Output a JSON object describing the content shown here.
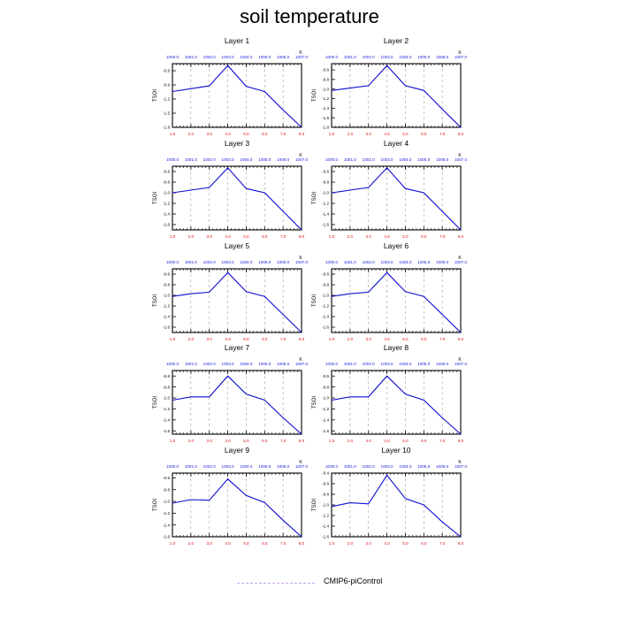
{
  "title": "soil temperature",
  "legend": {
    "label": "CMIP6-piControl",
    "color": "#c9a6ee"
  },
  "colors": {
    "line": "#0b0bd0",
    "bottom_ticks": "#e01010",
    "top_ticks": "#2020e0",
    "axis": "#000000",
    "grid": "#a0a0a0"
  },
  "chart_data": [
    {
      "type": "line",
      "title": "Layer 1",
      "ylabel": "TSOI",
      "top_unit": "K",
      "x": [
        1,
        2,
        3,
        4,
        5,
        6,
        7,
        8
      ],
      "x_ticks": [
        "1.0",
        "2.0",
        "3.0",
        "4.0",
        "5.0",
        "6.0",
        "7.0",
        "8.0"
      ],
      "top_ticks": [
        "1000.0",
        "1001.0",
        "1002.0",
        "1003.0",
        "1004.0",
        "1005.0",
        "1006.0",
        "1007.0"
      ],
      "y_ticks": [
        "-0.6",
        "-0.9",
        "-1.2",
        "-1.5",
        "-1.8"
      ],
      "yticks_values": [
        -0.6,
        -0.9,
        -1.2,
        -1.5,
        -1.8
      ],
      "ylim": [
        -1.8,
        -0.45
      ],
      "series": [
        {
          "name": "CMIP6-piControl",
          "values": [
            -1.04,
            -0.98,
            -0.92,
            -0.49,
            -0.93,
            -1.04,
            -1.43,
            -1.8
          ]
        }
      ]
    },
    {
      "type": "line",
      "title": "Layer 2",
      "ylabel": "TSOI",
      "top_unit": "K",
      "x": [
        1,
        2,
        3,
        4,
        5,
        6,
        7,
        8
      ],
      "x_ticks": [
        "1.0",
        "2.0",
        "3.0",
        "4.0",
        "5.0",
        "6.0",
        "7.0",
        "8.0"
      ],
      "top_ticks": [
        "1000.0",
        "1001.0",
        "1002.0",
        "1003.0",
        "1004.0",
        "1005.0",
        "1006.0",
        "1007.0"
      ],
      "y_ticks": [
        "-0.6",
        "-0.8",
        "-1.0",
        "-1.2",
        "-1.4",
        "-1.6",
        "-1.8"
      ],
      "yticks_values": [
        -0.6,
        -0.8,
        -1.0,
        -1.2,
        -1.4,
        -1.6,
        -1.8
      ],
      "ylim": [
        -1.8,
        -0.47
      ],
      "series": [
        {
          "name": "CMIP6-piControl",
          "values": [
            -1.03,
            -0.98,
            -0.93,
            -0.51,
            -0.93,
            -1.03,
            -1.42,
            -1.8
          ]
        }
      ]
    },
    {
      "type": "line",
      "title": "Layer 3",
      "ylabel": "TSOI",
      "top_unit": "K",
      "x": [
        1,
        2,
        3,
        4,
        5,
        6,
        7,
        8
      ],
      "x_ticks": [
        "1.0",
        "2.0",
        "3.0",
        "4.0",
        "5.0",
        "6.0",
        "7.0",
        "8.0"
      ],
      "top_ticks": [
        "1000.0",
        "1001.0",
        "1002.0",
        "1003.0",
        "1004.0",
        "1005.0",
        "1006.0",
        "1007.0"
      ],
      "y_ticks": [
        "-0.6",
        "-0.8",
        "-1.0",
        "-1.2",
        "-1.4",
        "-1.6"
      ],
      "yticks_values": [
        -0.6,
        -0.8,
        -1.0,
        -1.2,
        -1.4,
        -1.6
      ],
      "ylim": [
        -1.7,
        -0.5
      ],
      "series": [
        {
          "name": "CMIP6-piControl",
          "values": [
            -1.0,
            -0.95,
            -0.9,
            -0.53,
            -0.92,
            -1.0,
            -1.35,
            -1.7
          ]
        }
      ]
    },
    {
      "type": "line",
      "title": "Layer 4",
      "ylabel": "TSOI",
      "top_unit": "K",
      "x": [
        1,
        2,
        3,
        4,
        5,
        6,
        7,
        8
      ],
      "x_ticks": [
        "1.0",
        "2.0",
        "3.0",
        "4.0",
        "5.0",
        "6.0",
        "7.0",
        "8.0"
      ],
      "top_ticks": [
        "1000.0",
        "1001.0",
        "1002.0",
        "1003.0",
        "1004.0",
        "1005.0",
        "1006.0",
        "1007.0"
      ],
      "y_ticks": [
        "-0.6",
        "-0.8",
        "-1.0",
        "-1.2",
        "-1.4",
        "-1.6"
      ],
      "yticks_values": [
        -0.6,
        -0.8,
        -1.0,
        -1.2,
        -1.4,
        -1.6
      ],
      "ylim": [
        -1.7,
        -0.5
      ],
      "series": [
        {
          "name": "CMIP6-piControl",
          "values": [
            -1.0,
            -0.95,
            -0.9,
            -0.53,
            -0.92,
            -1.0,
            -1.35,
            -1.7
          ]
        }
      ]
    },
    {
      "type": "line",
      "title": "Layer 5",
      "ylabel": "TSOI",
      "top_unit": "K",
      "x": [
        1,
        2,
        3,
        4,
        5,
        6,
        7,
        8
      ],
      "x_ticks": [
        "1.0",
        "2.0",
        "3.0",
        "4.0",
        "5.0",
        "6.0",
        "7.0",
        "8.0"
      ],
      "top_ticks": [
        "1000.0",
        "1001.0",
        "1002.0",
        "1003.0",
        "1004.0",
        "1005.0",
        "1006.0",
        "1007.0"
      ],
      "y_ticks": [
        "-0.6",
        "-0.8",
        "-1.0",
        "-1.2",
        "-1.4",
        "-1.6"
      ],
      "yticks_values": [
        -0.6,
        -0.8,
        -1.0,
        -1.2,
        -1.4,
        -1.6
      ],
      "ylim": [
        -1.7,
        -0.5
      ],
      "series": [
        {
          "name": "CMIP6-piControl",
          "values": [
            -1.02,
            -0.97,
            -0.94,
            -0.57,
            -0.93,
            -1.02,
            -1.36,
            -1.7
          ]
        }
      ]
    },
    {
      "type": "line",
      "title": "Layer 6",
      "ylabel": "TSOI",
      "top_unit": "K",
      "x": [
        1,
        2,
        3,
        4,
        5,
        6,
        7,
        8
      ],
      "x_ticks": [
        "1.0",
        "2.0",
        "3.0",
        "4.0",
        "5.0",
        "6.0",
        "7.0",
        "8.0"
      ],
      "top_ticks": [
        "1000.0",
        "1001.0",
        "1002.0",
        "1003.0",
        "1004.0",
        "1005.0",
        "1006.0",
        "1007.0"
      ],
      "y_ticks": [
        "-0.6",
        "-0.8",
        "-1.0",
        "-1.2",
        "-1.4",
        "-1.6"
      ],
      "yticks_values": [
        -0.6,
        -0.8,
        -1.0,
        -1.2,
        -1.4,
        -1.6
      ],
      "ylim": [
        -1.7,
        -0.5
      ],
      "series": [
        {
          "name": "CMIP6-piControl",
          "values": [
            -1.02,
            -0.97,
            -0.94,
            -0.57,
            -0.93,
            -1.02,
            -1.36,
            -1.7
          ]
        }
      ]
    },
    {
      "type": "line",
      "title": "Layer 7",
      "ylabel": "TSOI",
      "top_unit": "K",
      "x": [
        1,
        2,
        3,
        4,
        5,
        6,
        7,
        8
      ],
      "x_ticks": [
        "1.0",
        "2.0",
        "3.0",
        "4.0",
        "5.0",
        "6.0",
        "7.0",
        "8.0"
      ],
      "top_ticks": [
        "1000.0",
        "1001.0",
        "1002.0",
        "1003.0",
        "1004.0",
        "1005.0",
        "1006.0",
        "1007.0"
      ],
      "y_ticks": [
        "-0.6",
        "-0.8",
        "-1.0",
        "-1.2",
        "-1.4",
        "-1.6"
      ],
      "yticks_values": [
        -0.6,
        -0.8,
        -1.0,
        -1.2,
        -1.4,
        -1.6
      ],
      "ylim": [
        -1.66,
        -0.5
      ],
      "series": [
        {
          "name": "CMIP6-piControl",
          "values": [
            -1.04,
            -0.98,
            -0.98,
            -0.6,
            -0.93,
            -1.04,
            -1.36,
            -1.66
          ]
        }
      ]
    },
    {
      "type": "line",
      "title": "Layer 8",
      "ylabel": "TSOI",
      "top_unit": "K",
      "x": [
        1,
        2,
        3,
        4,
        5,
        6,
        7,
        8
      ],
      "x_ticks": [
        "1.0",
        "2.0",
        "3.0",
        "4.0",
        "5.0",
        "6.0",
        "7.0",
        "8.0"
      ],
      "top_ticks": [
        "1000.0",
        "1001.0",
        "1002.0",
        "1003.0",
        "1004.0",
        "1005.0",
        "1006.0",
        "1007.0"
      ],
      "y_ticks": [
        "-0.6",
        "-0.8",
        "-1.0",
        "-1.2",
        "-1.4",
        "-1.6"
      ],
      "yticks_values": [
        -0.6,
        -0.8,
        -1.0,
        -1.2,
        -1.4,
        -1.6
      ],
      "ylim": [
        -1.66,
        -0.5
      ],
      "series": [
        {
          "name": "CMIP6-piControl",
          "values": [
            -1.04,
            -0.98,
            -0.98,
            -0.6,
            -0.93,
            -1.04,
            -1.36,
            -1.66
          ]
        }
      ]
    },
    {
      "type": "line",
      "title": "Layer 9",
      "ylabel": "TSOI",
      "top_unit": "K",
      "x": [
        1,
        2,
        3,
        4,
        5,
        6,
        7,
        8
      ],
      "x_ticks": [
        "1.0",
        "2.0",
        "3.0",
        "4.0",
        "5.0",
        "6.0",
        "7.0",
        "8.0"
      ],
      "top_ticks": [
        "1000.0",
        "1001.0",
        "1002.0",
        "1003.0",
        "1004.0",
        "1005.0",
        "1006.0",
        "1007.0"
      ],
      "y_ticks": [
        "-0.6",
        "-0.8",
        "-1.0",
        "-1.2",
        "-1.4",
        "-1.6"
      ],
      "yticks_values": [
        -0.6,
        -0.8,
        -1.0,
        -1.2,
        -1.4,
        -1.6
      ],
      "ylim": [
        -1.6,
        -0.52
      ],
      "series": [
        {
          "name": "CMIP6-piControl",
          "values": [
            -1.03,
            -0.97,
            -0.98,
            -0.62,
            -0.9,
            -1.02,
            -1.32,
            -1.6
          ]
        }
      ]
    },
    {
      "type": "line",
      "title": "Layer 10",
      "ylabel": "TSOI",
      "top_unit": "K",
      "x": [
        1,
        2,
        3,
        4,
        5,
        6,
        7,
        8
      ],
      "x_ticks": [
        "1.0",
        "2.0",
        "3.0",
        "4.0",
        "5.0",
        "6.0",
        "7.0",
        "8.0"
      ],
      "top_ticks": [
        "1000.0",
        "1001.0",
        "1002.0",
        "1003.0",
        "1004.0",
        "1005.0",
        "1006.0",
        "1007.0"
      ],
      "y_ticks": [
        "-0.4",
        "-0.6",
        "-0.8",
        "-1.0",
        "-1.2",
        "-1.4",
        "-1.6"
      ],
      "yticks_values": [
        -0.4,
        -0.6,
        -0.8,
        -1.0,
        -1.2,
        -1.4,
        -1.6
      ],
      "ylim": [
        -1.6,
        -0.4
      ],
      "series": [
        {
          "name": "CMIP6-piControl",
          "values": [
            -1.03,
            -0.96,
            -0.98,
            -0.44,
            -0.88,
            -1.0,
            -1.32,
            -1.6
          ]
        }
      ]
    }
  ]
}
